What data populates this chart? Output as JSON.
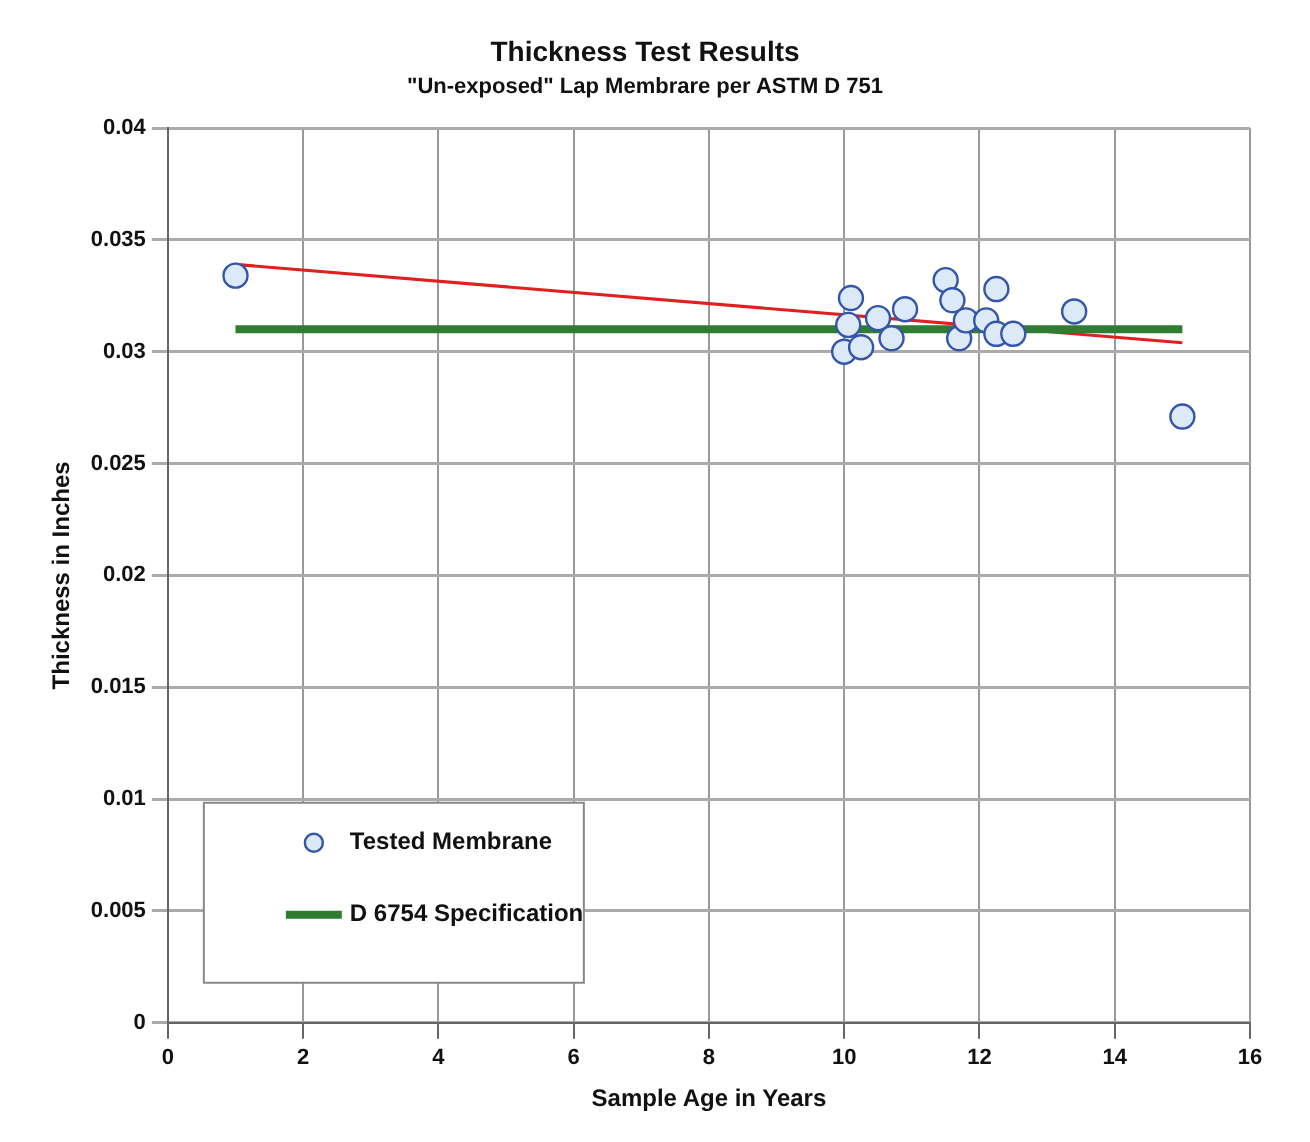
{
  "chart_data": {
    "type": "scatter",
    "title": "Thickness Test Results",
    "subtitle": "\"Un-exposed\" Lap Membrare per ASTM D 751",
    "xlabel": "Sample Age in Years",
    "ylabel": "Thickness in Inches",
    "xlim": [
      0,
      16
    ],
    "xticks": [
      0,
      2,
      4,
      6,
      8,
      10,
      12,
      14,
      16
    ],
    "ylim": [
      0,
      0.04
    ],
    "yticks": [
      0,
      0.005,
      0.01,
      0.015,
      0.02,
      0.025,
      0.03,
      0.035,
      0.04
    ],
    "grid": true,
    "legend": "bottom left",
    "series": [
      {
        "name": "Tested Membrane",
        "type": "scatter",
        "marker": "circle",
        "color": "#3355aa",
        "x": [
          1.0,
          10.1,
          10.06,
          10.0,
          10.25,
          10.5,
          10.7,
          10.9,
          11.5,
          11.6,
          11.7,
          11.8,
          12.1,
          12.25,
          12.25,
          12.5,
          13.4,
          15.0
        ],
        "values": [
          0.0334,
          0.0324,
          0.0312,
          0.03,
          0.0302,
          0.0315,
          0.0306,
          0.0319,
          0.0332,
          0.0323,
          0.0306,
          0.0314,
          0.0314,
          0.0328,
          0.0308,
          0.0308,
          0.0318,
          0.0271
        ]
      },
      {
        "name": "D 6754 Specification",
        "type": "line",
        "marker": "none",
        "color": "#2e7d32",
        "x": [
          1,
          15
        ],
        "values": [
          0.031,
          0.031
        ]
      },
      {
        "type": "line",
        "marker": "none",
        "color": "#e02020",
        "x": [
          1,
          15
        ],
        "values": [
          0.0339,
          0.0304
        ]
      }
    ]
  }
}
